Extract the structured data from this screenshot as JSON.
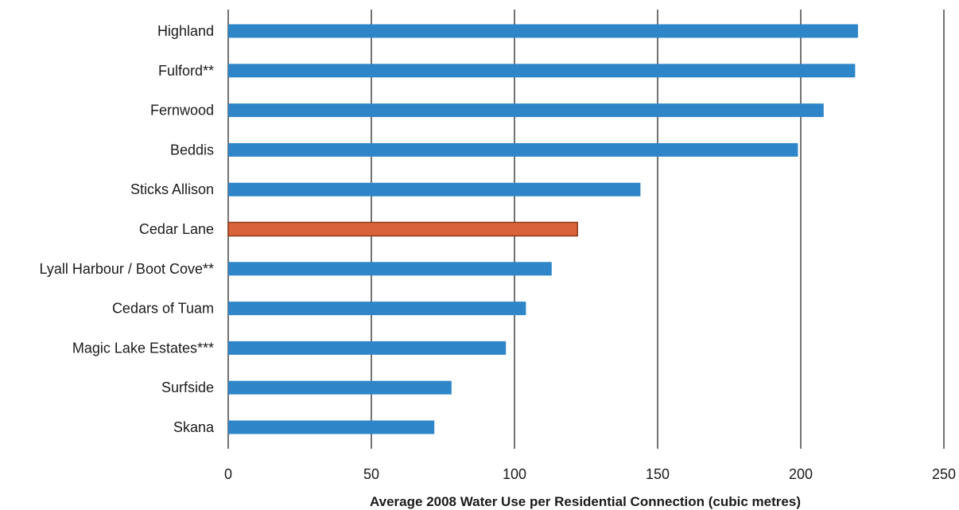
{
  "chart_data": {
    "type": "bar",
    "orientation": "horizontal",
    "categories": [
      "Highland",
      "Fulford**",
      "Fernwood",
      "Beddis",
      "Sticks Allison",
      "Cedar Lane",
      "Lyall Harbour / Boot Cove**",
      "Cedars of Tuam",
      "Magic Lake Estates***",
      "Surfside",
      "Skana"
    ],
    "values": [
      220,
      219,
      208,
      199,
      144,
      122,
      113,
      104,
      97,
      78,
      72
    ],
    "highlight_category": "Cedar Lane",
    "xlabel": "Average 2008 Water Use per Residential Connection (cubic metres)",
    "xlim": [
      0,
      250
    ],
    "xticks": [
      0,
      50,
      100,
      150,
      200,
      250
    ],
    "grid": "vertical",
    "legend": "none",
    "colors": {
      "bar": "#2e86c8",
      "highlight": "#d9643a",
      "highlight_stroke": "#8a3a1c",
      "grid": "#444444"
    }
  }
}
